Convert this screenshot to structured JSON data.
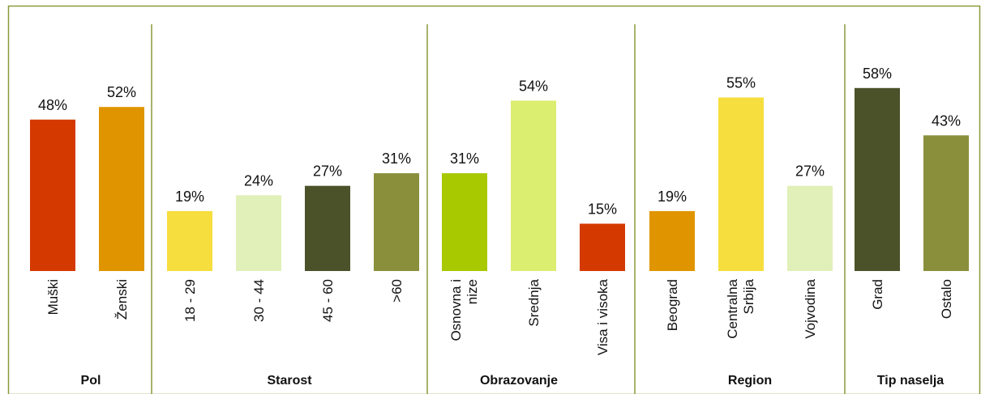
{
  "chart_data": [
    {
      "type": "bar",
      "title": "Pol",
      "categories": [
        "Muški",
        "Ženski"
      ],
      "values": [
        48,
        52
      ],
      "value_labels": [
        "48%",
        "52%"
      ],
      "colors": [
        "#d43a00",
        "#e09500"
      ]
    },
    {
      "type": "bar",
      "title": "Starost",
      "categories": [
        "18 - 29",
        "30 - 44",
        "45 - 60",
        ">60"
      ],
      "values": [
        19,
        24,
        27,
        31
      ],
      "value_labels": [
        "19%",
        "24%",
        "27%",
        "31%"
      ],
      "colors": [
        "#f6de3e",
        "#e0f0b8",
        "#4b5229",
        "#8a8f3c"
      ]
    },
    {
      "type": "bar",
      "title": "Obrazovanje",
      "categories": [
        "Osnovna i nize",
        "Srednja",
        "Visa i visoka"
      ],
      "values": [
        31,
        54,
        15
      ],
      "value_labels": [
        "31%",
        "54%",
        "15%"
      ],
      "colors": [
        "#a8c800",
        "#dcee70",
        "#d43a00"
      ]
    },
    {
      "type": "bar",
      "title": "Region",
      "categories": [
        "Beograd",
        "Centralna Srbija",
        "Vojvodina"
      ],
      "values": [
        19,
        55,
        27
      ],
      "value_labels": [
        "19%",
        "55%",
        "27%"
      ],
      "colors": [
        "#e09500",
        "#f6de3e",
        "#e0f0b8"
      ]
    },
    {
      "type": "bar",
      "title": "Tip naselja",
      "categories": [
        "Grad",
        "Ostalo"
      ],
      "values": [
        58,
        43
      ],
      "value_labels": [
        "58%",
        "43%"
      ],
      "colors": [
        "#4b5229",
        "#8a8f3c"
      ]
    }
  ]
}
